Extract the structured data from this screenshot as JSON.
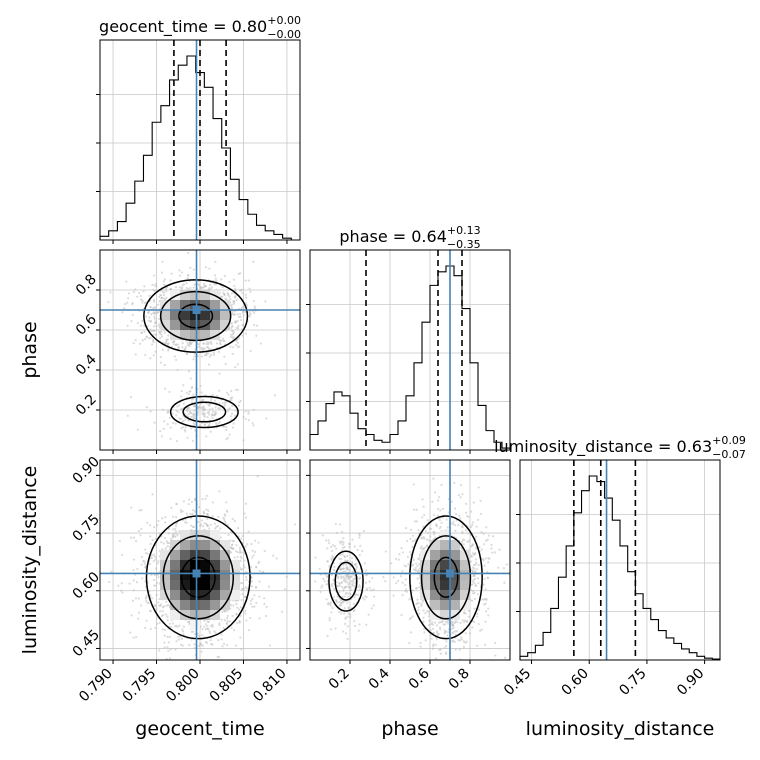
{
  "chart_data": {
    "type": "corner",
    "parameters": [
      {
        "name": "geocent_time",
        "axis_label": "geocent_time",
        "title": "geocent_time = 0.80",
        "title_plus": "+0.00",
        "title_minus": "−0.00",
        "range": [
          0.7885,
          0.8115
        ],
        "ticks": [
          0.79,
          0.795,
          0.8,
          0.805,
          0.81
        ],
        "tick_labels": [
          "0.790",
          "0.795",
          "0.800",
          "0.805",
          "0.810"
        ],
        "quantiles": [
          0.797,
          0.8,
          0.803
        ],
        "truth": 0.7996,
        "hist_bin_edges": [
          0.7885,
          0.7895,
          0.7905,
          0.7915,
          0.7925,
          0.7935,
          0.7945,
          0.7955,
          0.7965,
          0.7975,
          0.7985,
          0.7995,
          0.8005,
          0.8015,
          0.8025,
          0.8035,
          0.8045,
          0.8055,
          0.8065,
          0.8075,
          0.8085,
          0.8095,
          0.8105
        ],
        "hist_counts": [
          0.02,
          0.05,
          0.1,
          0.2,
          0.32,
          0.46,
          0.64,
          0.73,
          0.87,
          0.95,
          1.0,
          0.91,
          0.83,
          0.66,
          0.5,
          0.33,
          0.22,
          0.14,
          0.08,
          0.05,
          0.03,
          0.01
        ]
      },
      {
        "name": "phase",
        "axis_label": "phase",
        "title": "phase = 0.64",
        "title_plus": "+0.13",
        "title_minus": "−0.35",
        "range": [
          0.0,
          1.0
        ],
        "ticks": [
          0.2,
          0.4,
          0.6,
          0.8
        ],
        "tick_labels": [
          "0.2",
          "0.4",
          "0.6",
          "0.8"
        ],
        "quantiles": [
          0.28,
          0.64,
          0.76
        ],
        "truth": 0.7,
        "hist_bin_edges": [
          0.0,
          0.04,
          0.08,
          0.12,
          0.16,
          0.2,
          0.24,
          0.28,
          0.32,
          0.36,
          0.4,
          0.44,
          0.48,
          0.52,
          0.56,
          0.6,
          0.64,
          0.68,
          0.72,
          0.76,
          0.8,
          0.84,
          0.88,
          0.92,
          0.96,
          1.0
        ],
        "hist_counts": [
          0.08,
          0.15,
          0.24,
          0.3,
          0.28,
          0.19,
          0.11,
          0.08,
          0.05,
          0.04,
          0.08,
          0.15,
          0.28,
          0.45,
          0.66,
          0.85,
          0.92,
          0.95,
          0.9,
          0.73,
          0.45,
          0.23,
          0.1,
          0.04,
          0.01
        ]
      },
      {
        "name": "luminosity_distance",
        "axis_label": "luminosity_distance",
        "title": "luminosity_distance = 0.63",
        "title_plus": "+0.09",
        "title_minus": "−0.07",
        "range": [
          0.42,
          0.94
        ],
        "ticks": [
          0.45,
          0.6,
          0.75,
          0.9
        ],
        "tick_labels": [
          "0.45",
          "0.60",
          "0.75",
          "0.90"
        ],
        "quantiles": [
          0.56,
          0.63,
          0.72
        ],
        "truth": 0.645,
        "hist_bin_edges": [
          0.42,
          0.44,
          0.46,
          0.48,
          0.5,
          0.52,
          0.54,
          0.56,
          0.58,
          0.6,
          0.62,
          0.64,
          0.66,
          0.68,
          0.7,
          0.72,
          0.74,
          0.76,
          0.78,
          0.8,
          0.82,
          0.84,
          0.86,
          0.88,
          0.9,
          0.92,
          0.94
        ],
        "hist_counts": [
          0.02,
          0.04,
          0.08,
          0.15,
          0.28,
          0.45,
          0.62,
          0.8,
          0.92,
          1.0,
          0.97,
          0.88,
          0.76,
          0.62,
          0.48,
          0.36,
          0.28,
          0.22,
          0.16,
          0.12,
          0.09,
          0.06,
          0.04,
          0.02,
          0.01,
          0.005
        ]
      }
    ],
    "pairs": [
      {
        "x": "geocent_time",
        "y": "phase",
        "modes": [
          {
            "cx": 0.7995,
            "cy": 0.67,
            "sx": 0.0028,
            "sy": 0.085,
            "w": 0.82
          },
          {
            "cx": 0.8005,
            "cy": 0.19,
            "sx": 0.0025,
            "sy": 0.05,
            "w": 0.18
          }
        ]
      },
      {
        "x": "geocent_time",
        "y": "luminosity_distance",
        "modes": [
          {
            "cx": 0.7998,
            "cy": 0.635,
            "sx": 0.0028,
            "sy": 0.075,
            "w": 1.0
          }
        ]
      },
      {
        "x": "phase",
        "y": "luminosity_distance",
        "modes": [
          {
            "cx": 0.68,
            "cy": 0.635,
            "sx": 0.085,
            "sy": 0.075,
            "w": 0.78
          },
          {
            "cx": 0.18,
            "cy": 0.625,
            "sx": 0.055,
            "sy": 0.05,
            "w": 0.22
          }
        ]
      }
    ],
    "grid": true,
    "colors": {
      "truth": "#4682b4",
      "hist": "#000000",
      "contour": "#000000",
      "scatter": "#bdbdbd",
      "grid": "#c8c8c8"
    }
  }
}
